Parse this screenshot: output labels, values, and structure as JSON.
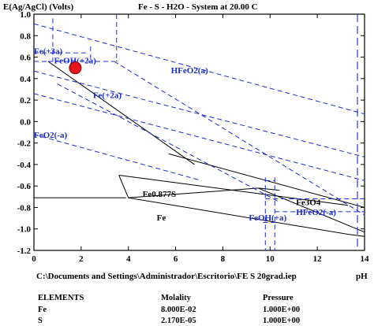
{
  "chart_data": {
    "type": "line",
    "title": "Fe - S - H2O - System at 20.00 C",
    "ylabel": "E(Ag/AgCl) (Volts)",
    "xlabel": "pH",
    "file_path": "C:\\Documents and Settings\\Administrador\\Escritorio\\FE S 20grad.iep",
    "xlim": [
      0,
      14
    ],
    "ylim": [
      -1.2,
      1.0
    ],
    "x_ticks": [
      "0",
      "2",
      "4",
      "6",
      "8",
      "10",
      "12",
      "14"
    ],
    "y_ticks": [
      "1.0",
      "0.8",
      "0.6",
      "0.4",
      "0.2",
      "0.0",
      "-0.2",
      "-0.4",
      "-0.6",
      "-0.8",
      "-1.0",
      "-1.2"
    ],
    "region_labels": [
      {
        "text": "Fe(+3a)",
        "x": 0.0,
        "y": 0.63,
        "color": "blue"
      },
      {
        "text": "FeOH(+2a)",
        "x": 0.85,
        "y": 0.54,
        "color": "blue"
      },
      {
        "text": "HFeO2(a)",
        "x": 5.8,
        "y": 0.45,
        "color": "blue"
      },
      {
        "text": "Fe(+2a)",
        "x": 2.5,
        "y": 0.22,
        "color": "blue"
      },
      {
        "text": "FeO2(-a)",
        "x": 0.0,
        "y": -0.15,
        "color": "blue"
      },
      {
        "text": "Fe0.877S",
        "x": 4.6,
        "y": -0.7,
        "color": "black"
      },
      {
        "text": "Fe3O4",
        "x": 11.1,
        "y": -0.78,
        "color": "black"
      },
      {
        "text": "HFeO2(-a)",
        "x": 11.1,
        "y": -0.87,
        "color": "blue"
      },
      {
        "text": "Fe",
        "x": 5.2,
        "y": -0.92,
        "color": "black"
      },
      {
        "text": "FeOH(+a)",
        "x": 9.1,
        "y": -0.92,
        "color": "blue"
      }
    ],
    "marker": {
      "x": 1.75,
      "y": 0.5,
      "color": "#e8141a"
    },
    "series": [
      {
        "style": "black-solid",
        "points": [
          [
            0.6,
            0.56
          ],
          [
            6.8,
            -0.4
          ]
        ]
      },
      {
        "style": "black-solid",
        "points": [
          [
            0.0,
            -0.71
          ],
          [
            3.9,
            -0.71
          ]
        ]
      },
      {
        "style": "black-solid",
        "points": [
          [
            3.6,
            -0.5
          ],
          [
            13.3,
            -0.78
          ]
        ]
      },
      {
        "style": "black-solid",
        "points": [
          [
            4.0,
            -0.71
          ],
          [
            9.5,
            -0.62
          ]
        ]
      },
      {
        "style": "black-solid",
        "points": [
          [
            3.6,
            -0.5
          ],
          [
            4.0,
            -0.71
          ],
          [
            13.3,
            -1.05
          ],
          [
            14.0,
            -1.07
          ]
        ]
      },
      {
        "style": "black-solid",
        "points": [
          [
            5.7,
            -0.3
          ],
          [
            14.0,
            -0.8
          ]
        ]
      },
      {
        "style": "black-solid",
        "points": [
          [
            9.5,
            -0.62
          ],
          [
            14.0,
            -1.03
          ]
        ]
      },
      {
        "style": "black-solid",
        "points": [
          [
            9.5,
            -0.62
          ],
          [
            10.4,
            -0.64
          ]
        ]
      },
      {
        "style": "blue-dash",
        "points": [
          [
            0.6,
            0.56
          ],
          [
            3.4,
            0.56
          ]
        ]
      },
      {
        "style": "blue-dash",
        "points": [
          [
            3.4,
            0.56
          ],
          [
            14.0,
            -0.87
          ]
        ]
      },
      {
        "style": "blue-dash",
        "points": [
          [
            1.0,
            0.35
          ],
          [
            10.4,
            -0.75
          ]
        ]
      },
      {
        "style": "blue-dash",
        "points": [
          [
            0.0,
            0.64
          ],
          [
            2.2,
            0.64
          ]
        ]
      },
      {
        "style": "blue-dash",
        "points": [
          [
            0.8,
            0.96
          ],
          [
            0.8,
            0.56
          ]
        ]
      },
      {
        "style": "blue-dash",
        "points": [
          [
            2.4,
            0.7
          ],
          [
            2.4,
            0.56
          ]
        ]
      },
      {
        "style": "blue-dash",
        "points": [
          [
            3.5,
            1.0
          ],
          [
            3.5,
            0.57
          ]
        ]
      },
      {
        "style": "blue-dash",
        "points": [
          [
            9.8,
            -0.52
          ],
          [
            9.8,
            -1.2
          ]
        ]
      },
      {
        "style": "blue-dash",
        "points": [
          [
            10.2,
            -0.52
          ],
          [
            10.2,
            -1.2
          ]
        ]
      },
      {
        "style": "blue-dash",
        "points": [
          [
            9.8,
            -0.72
          ],
          [
            14.0,
            -0.72
          ]
        ]
      },
      {
        "style": "blue-dash",
        "points": [
          [
            10.2,
            -0.84
          ],
          [
            14.0,
            -0.84
          ]
        ]
      },
      {
        "style": "blue-dash",
        "points": [
          [
            0.0,
            0.56
          ],
          [
            0.55,
            0.56
          ]
        ]
      },
      {
        "style": "blue-dash",
        "points": [
          [
            9.8,
            -0.55
          ],
          [
            10.2,
            -0.55
          ]
        ]
      },
      {
        "style": "blue-dash",
        "points": [
          [
            0.0,
            -0.12
          ],
          [
            7.1,
            -0.55
          ]
        ]
      },
      {
        "style": "blue-dash",
        "points": [
          [
            0.0,
            0.47
          ],
          [
            14.0,
            -0.33
          ]
        ]
      },
      {
        "style": "blue-dash",
        "points": [
          [
            0.0,
            0.91
          ],
          [
            14.0,
            0.07
          ]
        ]
      },
      {
        "style": "blue-dash",
        "points": [
          [
            0.0,
            0.26
          ],
          [
            14.0,
            -0.55
          ]
        ]
      },
      {
        "style": "blue-dash",
        "points": [
          [
            9.7,
            -0.94
          ],
          [
            10.2,
            -0.94
          ]
        ]
      },
      {
        "style": "blue-longdash",
        "points": [
          [
            3.5,
            0.56
          ],
          [
            3.5,
            0.57
          ]
        ]
      },
      {
        "style": "blue-longdash",
        "points": [
          [
            13.7,
            1.0
          ],
          [
            13.7,
            -1.2
          ]
        ]
      }
    ]
  },
  "table": {
    "headers": {
      "elements": "ELEMENTS",
      "molality": "Molality",
      "pressure": "Pressure"
    },
    "rows": [
      {
        "element": "Fe",
        "molality": "8.000E-02",
        "pressure": "1.000E+00"
      },
      {
        "element": "S",
        "molality": "2.170E-05",
        "pressure": "1.000E+00"
      }
    ]
  }
}
